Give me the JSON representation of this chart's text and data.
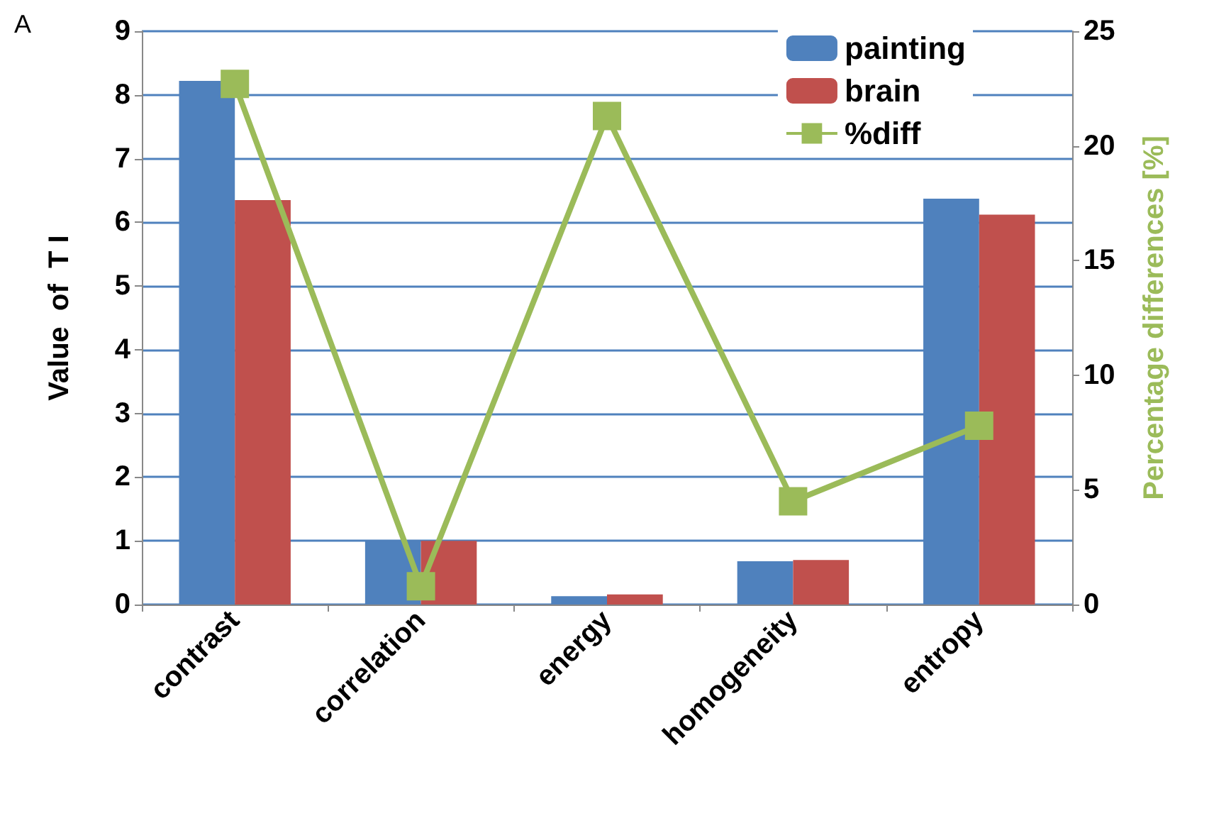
{
  "chart_data": {
    "type": "bar",
    "annotations": [
      "A"
    ],
    "ylabel": "Value  of  T I",
    "y2label": "Percentage differences [%]",
    "categories": [
      "contrast",
      "correlation",
      "energy",
      "homogeneity",
      "entropy"
    ],
    "series": [
      {
        "name": "painting",
        "color": "#4f81bd",
        "values": [
          8.22,
          1.0,
          0.13,
          0.68,
          6.37
        ]
      },
      {
        "name": "brain",
        "color": "#c0504d",
        "values": [
          6.35,
          1.0,
          0.16,
          0.7,
          6.12
        ]
      },
      {
        "name": "%diff",
        "type": "line",
        "axis": "y2",
        "color": "#9bbb59",
        "values": [
          22.7,
          0.8,
          21.3,
          4.5,
          7.8
        ]
      }
    ],
    "ylim": [
      0,
      9
    ],
    "yticks": [
      0,
      1,
      2,
      3,
      4,
      5,
      6,
      7,
      8,
      9
    ],
    "y2lim": [
      0,
      25
    ],
    "y2ticks": [
      0,
      5,
      10,
      15,
      20,
      25
    ],
    "grid": "y",
    "legend": "top right",
    "marker": "square",
    "line_style": "solid"
  }
}
